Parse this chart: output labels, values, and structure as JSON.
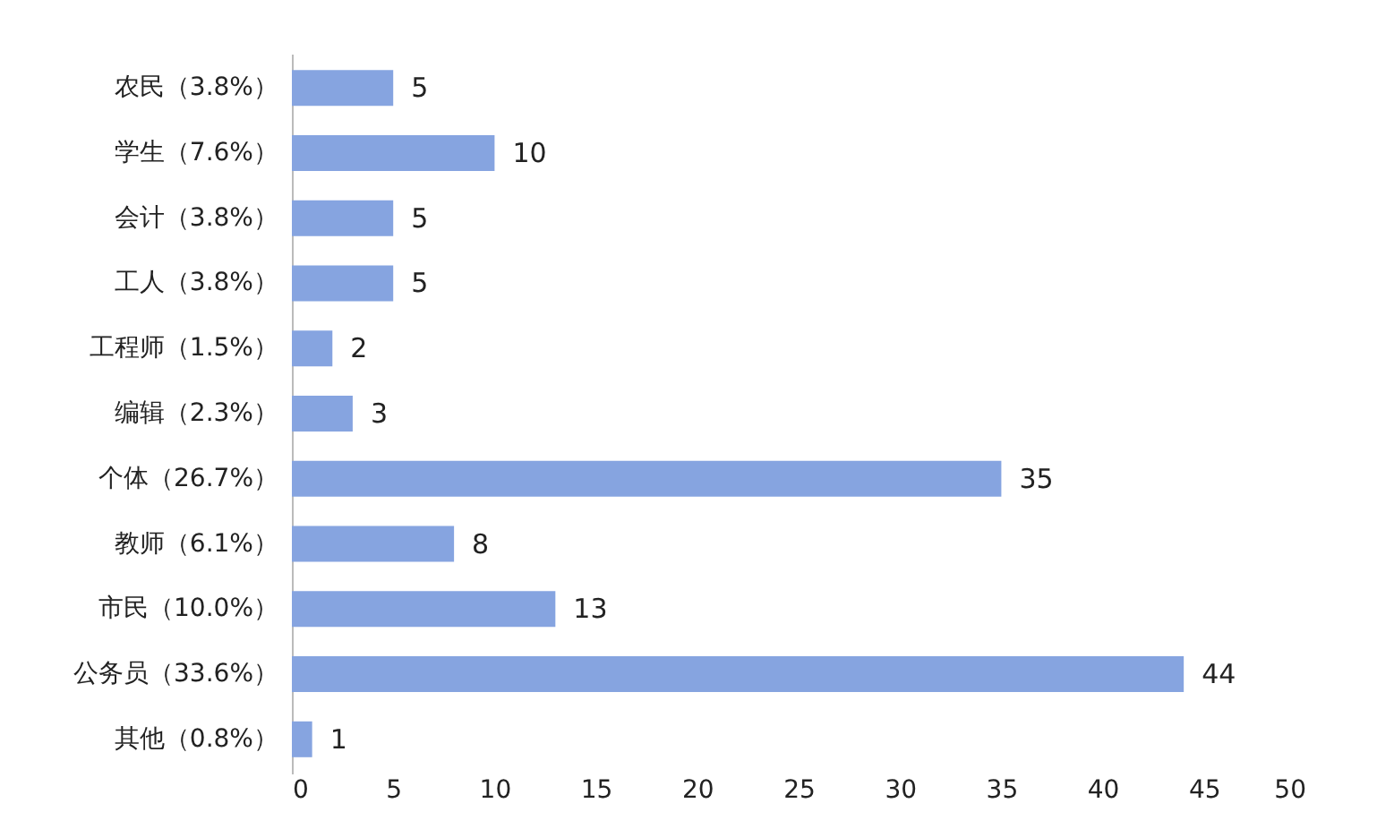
{
  "chart_data": {
    "type": "bar",
    "orientation": "horizontal",
    "categories": [
      "农民（3.8%）",
      "学生（7.6%）",
      "会计（3.8%）",
      "工人（3.8%）",
      "工程师（1.5%）",
      "编辑（2.3%）",
      "个体（26.7%）",
      "教师（6.1%）",
      "市民（10.0%）",
      "公务员（33.6%）",
      "其他（0.8%）"
    ],
    "values": [
      5,
      10,
      5,
      5,
      2,
      3,
      35,
      8,
      13,
      44,
      1
    ],
    "color": "#86a4e0",
    "xlim": [
      0,
      50
    ],
    "xticks": [
      0,
      5,
      10,
      15,
      20,
      25,
      30,
      35,
      40,
      45,
      50
    ],
    "data_labels": true
  }
}
